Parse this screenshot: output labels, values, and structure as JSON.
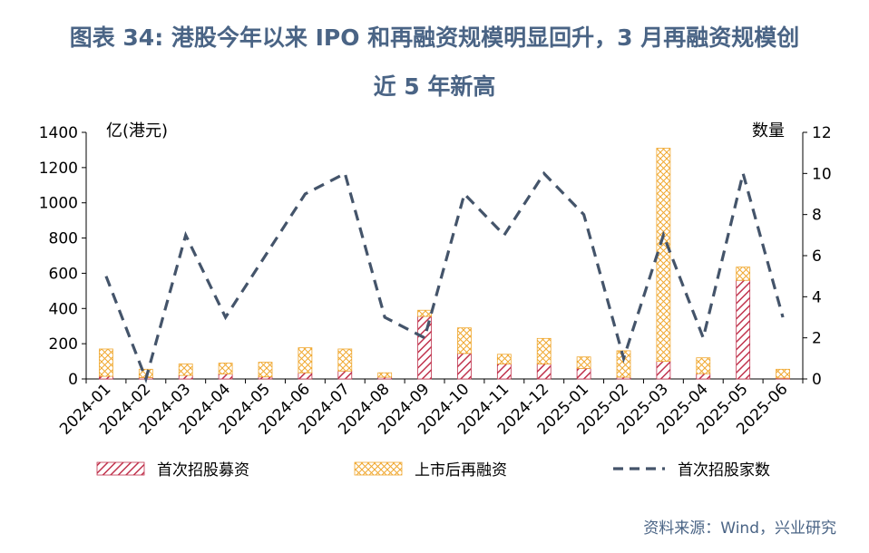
{
  "title_line1": "图表 34: 港股今年以来 IPO 和再融资规模明显回升，3 月再融资规模创",
  "title_line2": "近 5 年新高",
  "source": "资料来源：Wind，兴业研究",
  "chart_data": {
    "type": "bar",
    "stacked": true,
    "categories": [
      "2024-01",
      "2024-02",
      "2024-03",
      "2024-04",
      "2024-05",
      "2024-06",
      "2024-07",
      "2024-08",
      "2024-09",
      "2024-10",
      "2024-11",
      "2024-12",
      "2025-01",
      "2025-02",
      "2025-03",
      "2025-04",
      "2025-05",
      "2025-06"
    ],
    "ylabel_left": "亿(港元)",
    "ylabel_right": "数量",
    "ylim_left": [
      0,
      1400
    ],
    "yticks_left": [
      0,
      200,
      400,
      600,
      800,
      1000,
      1200,
      1400
    ],
    "ylim_right": [
      0,
      12
    ],
    "yticks_right": [
      0,
      2,
      4,
      6,
      8,
      10,
      12
    ],
    "series": [
      {
        "name": "首次招股募资",
        "kind": "bar",
        "axis": "left",
        "color": "#c0334d",
        "values": [
          15,
          8,
          20,
          28,
          12,
          35,
          45,
          10,
          355,
          145,
          85,
          85,
          60,
          10,
          100,
          30,
          560,
          5
        ]
      },
      {
        "name": "上市后再融资",
        "kind": "bar",
        "axis": "left",
        "color": "#f0a830",
        "values": [
          155,
          47,
          65,
          62,
          83,
          142,
          125,
          25,
          35,
          145,
          55,
          145,
          65,
          150,
          1210,
          90,
          75,
          50
        ]
      },
      {
        "name": "首次招股家数",
        "kind": "line",
        "axis": "right",
        "color": "#44546a",
        "values": [
          5,
          0,
          7,
          3,
          6,
          9,
          10,
          3,
          2,
          9,
          7,
          10,
          8,
          1,
          7,
          2,
          10,
          3
        ]
      }
    ],
    "legend_position": "bottom",
    "grid": false
  }
}
